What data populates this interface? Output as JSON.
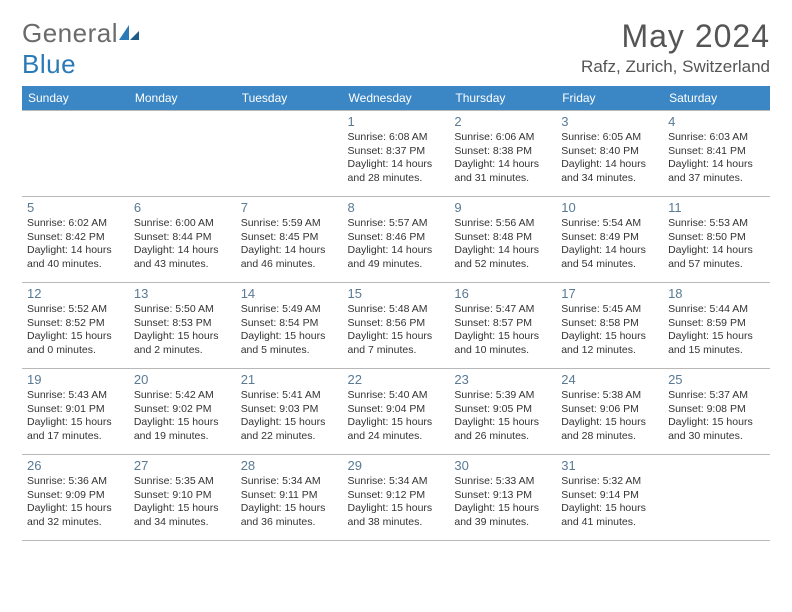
{
  "brand": {
    "part1": "General",
    "part2": "Blue"
  },
  "title": "May 2024",
  "location": "Rafz, Zurich, Switzerland",
  "weekdays": [
    "Sunday",
    "Monday",
    "Tuesday",
    "Wednesday",
    "Thursday",
    "Friday",
    "Saturday"
  ],
  "colors": {
    "header_bg": "#3b86c4",
    "header_fg": "#ffffff",
    "daynum": "#5a7a94",
    "brand_gray": "#6b6b6b",
    "brand_blue": "#2a7ab8",
    "grid_line": "#b8b8b8"
  },
  "weeks": [
    [
      null,
      null,
      null,
      {
        "n": "1",
        "sr": "Sunrise: 6:08 AM",
        "ss": "Sunset: 8:37 PM",
        "d1": "Daylight: 14 hours",
        "d2": "and 28 minutes."
      },
      {
        "n": "2",
        "sr": "Sunrise: 6:06 AM",
        "ss": "Sunset: 8:38 PM",
        "d1": "Daylight: 14 hours",
        "d2": "and 31 minutes."
      },
      {
        "n": "3",
        "sr": "Sunrise: 6:05 AM",
        "ss": "Sunset: 8:40 PM",
        "d1": "Daylight: 14 hours",
        "d2": "and 34 minutes."
      },
      {
        "n": "4",
        "sr": "Sunrise: 6:03 AM",
        "ss": "Sunset: 8:41 PM",
        "d1": "Daylight: 14 hours",
        "d2": "and 37 minutes."
      }
    ],
    [
      {
        "n": "5",
        "sr": "Sunrise: 6:02 AM",
        "ss": "Sunset: 8:42 PM",
        "d1": "Daylight: 14 hours",
        "d2": "and 40 minutes."
      },
      {
        "n": "6",
        "sr": "Sunrise: 6:00 AM",
        "ss": "Sunset: 8:44 PM",
        "d1": "Daylight: 14 hours",
        "d2": "and 43 minutes."
      },
      {
        "n": "7",
        "sr": "Sunrise: 5:59 AM",
        "ss": "Sunset: 8:45 PM",
        "d1": "Daylight: 14 hours",
        "d2": "and 46 minutes."
      },
      {
        "n": "8",
        "sr": "Sunrise: 5:57 AM",
        "ss": "Sunset: 8:46 PM",
        "d1": "Daylight: 14 hours",
        "d2": "and 49 minutes."
      },
      {
        "n": "9",
        "sr": "Sunrise: 5:56 AM",
        "ss": "Sunset: 8:48 PM",
        "d1": "Daylight: 14 hours",
        "d2": "and 52 minutes."
      },
      {
        "n": "10",
        "sr": "Sunrise: 5:54 AM",
        "ss": "Sunset: 8:49 PM",
        "d1": "Daylight: 14 hours",
        "d2": "and 54 minutes."
      },
      {
        "n": "11",
        "sr": "Sunrise: 5:53 AM",
        "ss": "Sunset: 8:50 PM",
        "d1": "Daylight: 14 hours",
        "d2": "and 57 minutes."
      }
    ],
    [
      {
        "n": "12",
        "sr": "Sunrise: 5:52 AM",
        "ss": "Sunset: 8:52 PM",
        "d1": "Daylight: 15 hours",
        "d2": "and 0 minutes."
      },
      {
        "n": "13",
        "sr": "Sunrise: 5:50 AM",
        "ss": "Sunset: 8:53 PM",
        "d1": "Daylight: 15 hours",
        "d2": "and 2 minutes."
      },
      {
        "n": "14",
        "sr": "Sunrise: 5:49 AM",
        "ss": "Sunset: 8:54 PM",
        "d1": "Daylight: 15 hours",
        "d2": "and 5 minutes."
      },
      {
        "n": "15",
        "sr": "Sunrise: 5:48 AM",
        "ss": "Sunset: 8:56 PM",
        "d1": "Daylight: 15 hours",
        "d2": "and 7 minutes."
      },
      {
        "n": "16",
        "sr": "Sunrise: 5:47 AM",
        "ss": "Sunset: 8:57 PM",
        "d1": "Daylight: 15 hours",
        "d2": "and 10 minutes."
      },
      {
        "n": "17",
        "sr": "Sunrise: 5:45 AM",
        "ss": "Sunset: 8:58 PM",
        "d1": "Daylight: 15 hours",
        "d2": "and 12 minutes."
      },
      {
        "n": "18",
        "sr": "Sunrise: 5:44 AM",
        "ss": "Sunset: 8:59 PM",
        "d1": "Daylight: 15 hours",
        "d2": "and 15 minutes."
      }
    ],
    [
      {
        "n": "19",
        "sr": "Sunrise: 5:43 AM",
        "ss": "Sunset: 9:01 PM",
        "d1": "Daylight: 15 hours",
        "d2": "and 17 minutes."
      },
      {
        "n": "20",
        "sr": "Sunrise: 5:42 AM",
        "ss": "Sunset: 9:02 PM",
        "d1": "Daylight: 15 hours",
        "d2": "and 19 minutes."
      },
      {
        "n": "21",
        "sr": "Sunrise: 5:41 AM",
        "ss": "Sunset: 9:03 PM",
        "d1": "Daylight: 15 hours",
        "d2": "and 22 minutes."
      },
      {
        "n": "22",
        "sr": "Sunrise: 5:40 AM",
        "ss": "Sunset: 9:04 PM",
        "d1": "Daylight: 15 hours",
        "d2": "and 24 minutes."
      },
      {
        "n": "23",
        "sr": "Sunrise: 5:39 AM",
        "ss": "Sunset: 9:05 PM",
        "d1": "Daylight: 15 hours",
        "d2": "and 26 minutes."
      },
      {
        "n": "24",
        "sr": "Sunrise: 5:38 AM",
        "ss": "Sunset: 9:06 PM",
        "d1": "Daylight: 15 hours",
        "d2": "and 28 minutes."
      },
      {
        "n": "25",
        "sr": "Sunrise: 5:37 AM",
        "ss": "Sunset: 9:08 PM",
        "d1": "Daylight: 15 hours",
        "d2": "and 30 minutes."
      }
    ],
    [
      {
        "n": "26",
        "sr": "Sunrise: 5:36 AM",
        "ss": "Sunset: 9:09 PM",
        "d1": "Daylight: 15 hours",
        "d2": "and 32 minutes."
      },
      {
        "n": "27",
        "sr": "Sunrise: 5:35 AM",
        "ss": "Sunset: 9:10 PM",
        "d1": "Daylight: 15 hours",
        "d2": "and 34 minutes."
      },
      {
        "n": "28",
        "sr": "Sunrise: 5:34 AM",
        "ss": "Sunset: 9:11 PM",
        "d1": "Daylight: 15 hours",
        "d2": "and 36 minutes."
      },
      {
        "n": "29",
        "sr": "Sunrise: 5:34 AM",
        "ss": "Sunset: 9:12 PM",
        "d1": "Daylight: 15 hours",
        "d2": "and 38 minutes."
      },
      {
        "n": "30",
        "sr": "Sunrise: 5:33 AM",
        "ss": "Sunset: 9:13 PM",
        "d1": "Daylight: 15 hours",
        "d2": "and 39 minutes."
      },
      {
        "n": "31",
        "sr": "Sunrise: 5:32 AM",
        "ss": "Sunset: 9:14 PM",
        "d1": "Daylight: 15 hours",
        "d2": "and 41 minutes."
      },
      null
    ]
  ]
}
